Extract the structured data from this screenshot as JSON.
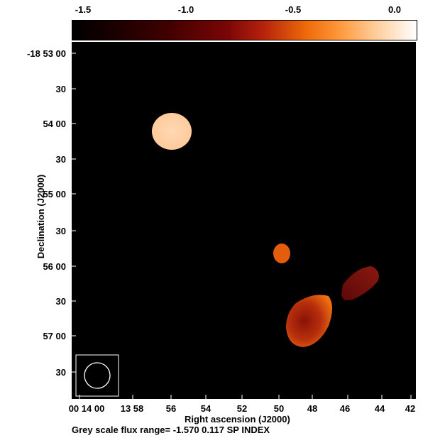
{
  "colorbar": {
    "ticks": [
      "-1.5",
      "-1.0",
      "-0.5",
      "0.0"
    ]
  },
  "y_axis": {
    "label": "Declination (J2000)",
    "ticks": [
      "-18 53 00",
      "30",
      "54 00",
      "30",
      "55 00",
      "30",
      "56 00",
      "30",
      "57 00",
      "30"
    ]
  },
  "x_axis": {
    "label": "Right ascension (J2000)",
    "ticks": [
      "00 14 00",
      "13 58",
      "56",
      "54",
      "52",
      "50",
      "48",
      "46",
      "44",
      "42"
    ]
  },
  "caption": "Grey scale flux range= -1.570 0.117 SP INDEX",
  "colors": {
    "background": "#000000",
    "source_bright": "#ffd2a8",
    "source_mid": "#e8660a",
    "source_dark": "#7a1410"
  }
}
